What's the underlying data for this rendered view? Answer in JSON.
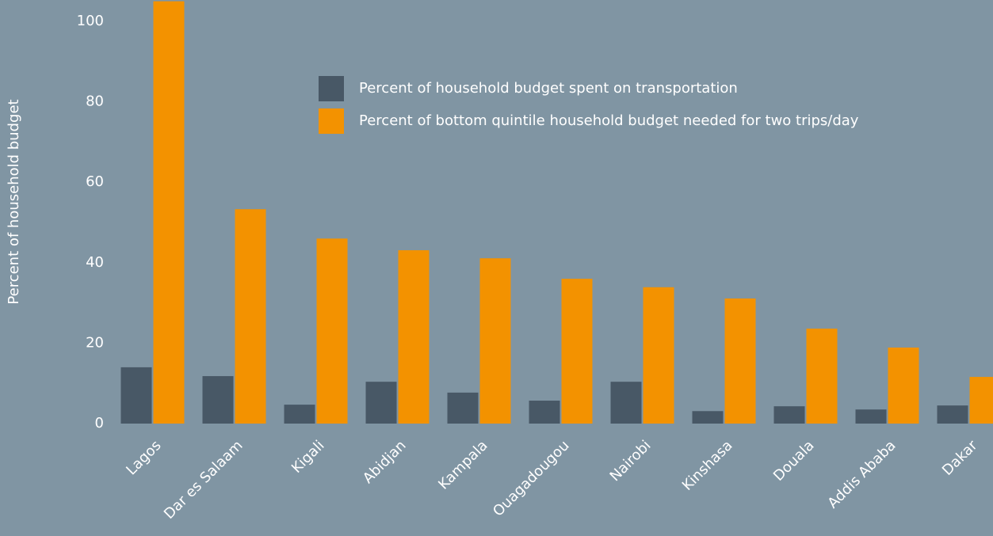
{
  "chart_data": {
    "type": "bar",
    "y_label": "Percent of household budget",
    "categories": [
      "Lagos",
      "Dar es Salaam",
      "Kigali",
      "Abidjan",
      "Kampala",
      "Ouagadougou",
      "Nairobi",
      "Kinshasa",
      "Douala",
      "Addis Ababa",
      "Dakar"
    ],
    "series": [
      {
        "name": "Percent of household budget spent on transportation",
        "color": "#485866",
        "values": [
          14,
          11.8,
          4.7,
          10.4,
          7.7,
          5.7,
          10.4,
          3.1,
          4.3,
          3.5,
          4.5
        ]
      },
      {
        "name": "Percent of bottom quintile household budget needed for two trips/day",
        "color": "#f39200",
        "values": [
          105,
          53.3,
          46,
          43.1,
          41.1,
          36,
          33.9,
          31.1,
          23.6,
          18.9,
          11.6
        ]
      }
    ],
    "ylim": [
      0,
      105
    ],
    "yticks": [
      0,
      20,
      40,
      60,
      80,
      100
    ]
  }
}
